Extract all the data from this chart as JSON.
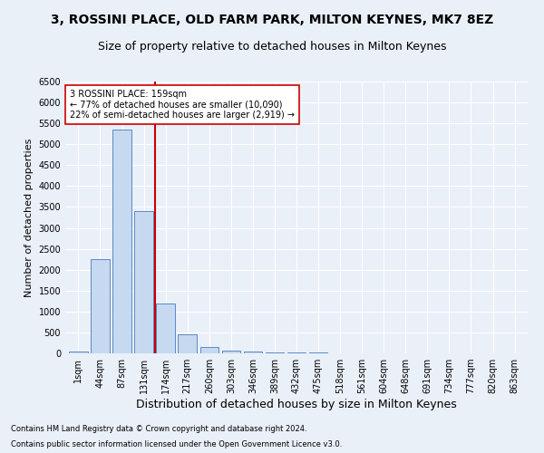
{
  "title1": "3, ROSSINI PLACE, OLD FARM PARK, MILTON KEYNES, MK7 8EZ",
  "title2": "Size of property relative to detached houses in Milton Keynes",
  "xlabel": "Distribution of detached houses by size in Milton Keynes",
  "ylabel": "Number of detached properties",
  "categories": [
    "1sqm",
    "44sqm",
    "87sqm",
    "131sqm",
    "174sqm",
    "217sqm",
    "260sqm",
    "303sqm",
    "346sqm",
    "389sqm",
    "432sqm",
    "475sqm",
    "518sqm",
    "561sqm",
    "604sqm",
    "648sqm",
    "691sqm",
    "734sqm",
    "777sqm",
    "820sqm",
    "863sqm"
  ],
  "values": [
    50,
    2250,
    5350,
    3400,
    1200,
    450,
    150,
    75,
    50,
    30,
    20,
    15,
    10,
    5,
    3,
    2,
    1,
    1,
    1,
    1,
    0
  ],
  "bar_color": "#c6d9f0",
  "bar_edge_color": "#5a8ac6",
  "vline_color": "#cc0000",
  "annotation_text": "3 ROSSINI PLACE: 159sqm\n← 77% of detached houses are smaller (10,090)\n22% of semi-detached houses are larger (2,919) →",
  "annotation_box_color": "#ffffff",
  "annotation_box_edge": "#cc0000",
  "footer1": "Contains HM Land Registry data © Crown copyright and database right 2024.",
  "footer2": "Contains public sector information licensed under the Open Government Licence v3.0.",
  "bg_color": "#eaf0f8",
  "plot_bg_color": "#eaf0f8",
  "grid_color": "#ffffff",
  "ylim": [
    0,
    6500
  ],
  "title1_fontsize": 10,
  "title2_fontsize": 9,
  "xlabel_fontsize": 9,
  "ylabel_fontsize": 8,
  "tick_fontsize": 7,
  "annotation_fontsize": 7,
  "footer_fontsize": 6
}
